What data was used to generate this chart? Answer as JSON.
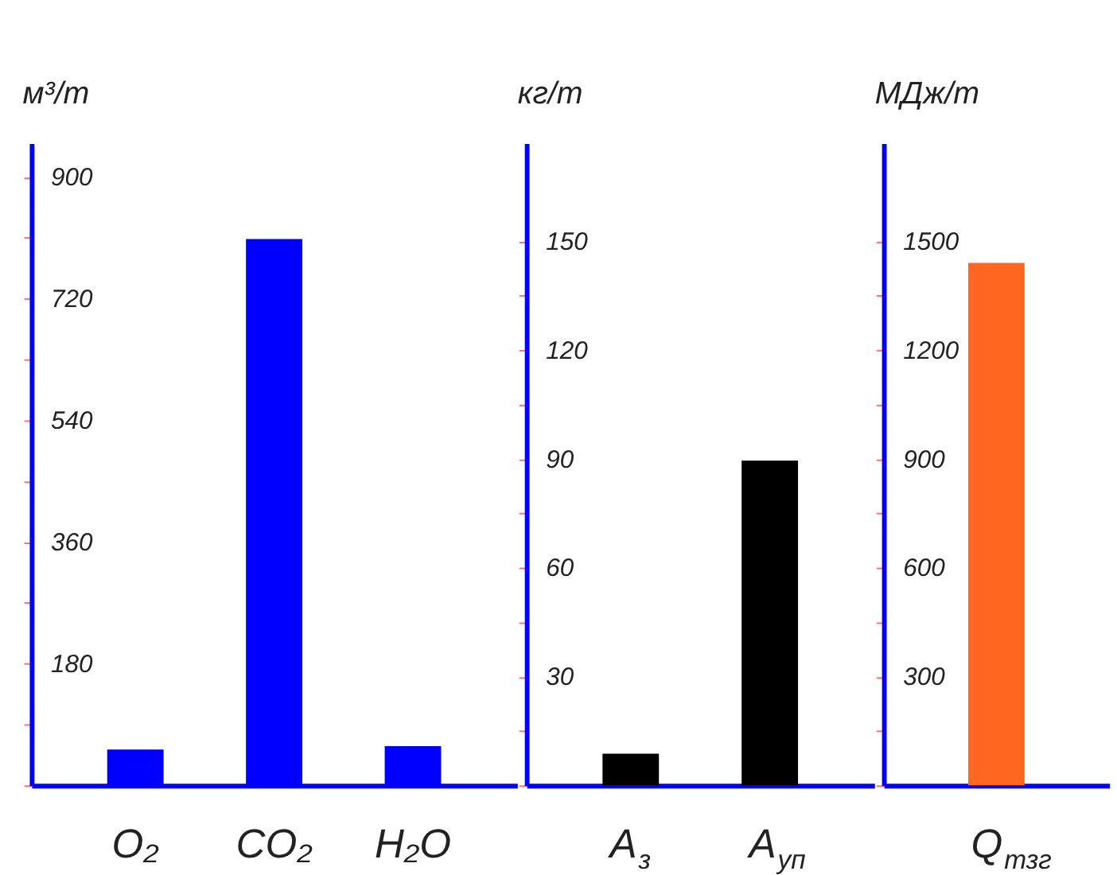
{
  "chart_data": [
    {
      "type": "bar",
      "ylabel": "м³/т",
      "categories": [
        "O₂",
        "CO₂",
        "H₂O"
      ],
      "values": [
        53,
        808,
        58
      ],
      "colors": [
        "#0000ff",
        "#0000ff",
        "#0000ff"
      ],
      "ylim": [
        0,
        950
      ],
      "yticks": [
        {
          "value": 0,
          "label": null
        },
        {
          "value": 90,
          "label": null
        },
        180,
        {
          "value": 270,
          "label": null
        },
        360,
        {
          "value": 450,
          "label": null
        },
        540,
        {
          "value": 630,
          "label": null
        },
        720,
        {
          "value": 810,
          "label": null
        },
        900
      ]
    },
    {
      "type": "bar",
      "ylabel": "кг/т",
      "categories": [
        "A$_{з}$",
        "A$_{уп}$"
      ],
      "values": [
        8.7,
        89.5
      ],
      "colors": [
        "#000000",
        "#000000"
      ],
      "ylim": [
        0,
        177
      ],
      "yticks": [
        {
          "value": 0,
          "label": null
        },
        {
          "value": 15,
          "label": null
        },
        30,
        {
          "value": 45,
          "label": null
        },
        60,
        {
          "value": 75,
          "label": null
        },
        90,
        {
          "value": 105,
          "label": null
        },
        120,
        {
          "value": 135,
          "label": null
        },
        150
      ]
    },
    {
      "type": "bar",
      "ylabel": "МДж/т",
      "categories": [
        "Q$_{тзг}$"
      ],
      "values": [
        1440
      ],
      "colors": [
        "#ff6620"
      ],
      "ylim": [
        0,
        1770
      ],
      "yticks": [
        {
          "value": 0,
          "label": null
        },
        {
          "value": 150,
          "label": null
        },
        300,
        {
          "value": 450,
          "label": null
        },
        600,
        {
          "value": 750,
          "label": null
        },
        900,
        {
          "value": 1050,
          "label": null
        },
        1200,
        {
          "value": 1350,
          "label": null
        },
        1500
      ]
    }
  ]
}
